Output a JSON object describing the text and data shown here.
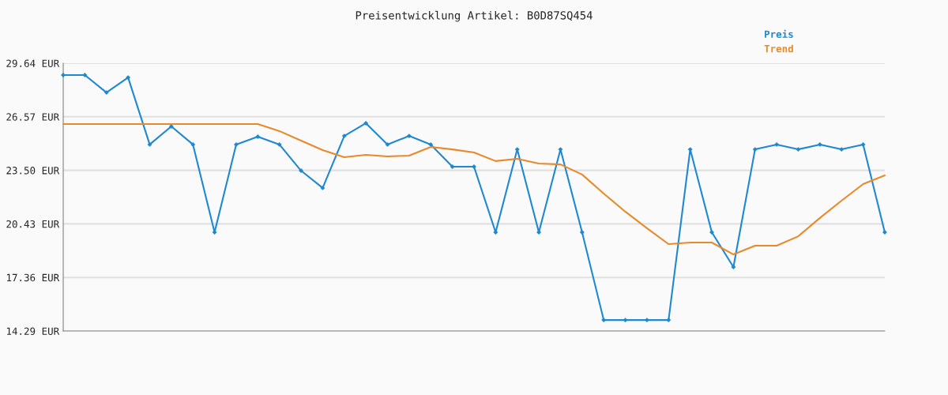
{
  "chart_data": {
    "type": "line",
    "title": "Preisentwicklung Artikel: B0D87SQ454",
    "categories": [
      null,
      null,
      null,
      null,
      null,
      null,
      null,
      null,
      null,
      null,
      null,
      null,
      null,
      null,
      null,
      null,
      null,
      null,
      null,
      null,
      null,
      null,
      null,
      null,
      null,
      null,
      null,
      null,
      null,
      null,
      null,
      null,
      null,
      null,
      null,
      null,
      null,
      null,
      null
    ],
    "series": [
      {
        "name": "Preis",
        "color": "#1e88d0",
        "marker": "diamond",
        "values": [
          28.96,
          28.96,
          27.96,
          28.82,
          24.98,
          26.02,
          24.98,
          19.95,
          24.98,
          25.43,
          24.98,
          23.48,
          22.49,
          25.47,
          26.2,
          24.98,
          25.47,
          24.98,
          23.71,
          23.71,
          19.95,
          24.7,
          19.95,
          24.7,
          19.95,
          14.92,
          14.92,
          14.92,
          14.92,
          24.7,
          19.95,
          17.96,
          24.7,
          24.98,
          24.7,
          24.98,
          24.7,
          24.98,
          19.95
        ]
      },
      {
        "name": "Trend",
        "color": "#e8892a",
        "values": [
          26.15,
          26.15,
          26.15,
          26.15,
          26.15,
          26.15,
          26.15,
          26.15,
          26.15,
          26.15,
          25.75,
          25.2,
          24.66,
          24.25,
          24.39,
          24.3,
          24.34,
          24.84,
          24.7,
          24.52,
          24.03,
          24.16,
          23.89,
          23.84,
          23.26,
          22.17,
          21.13,
          20.18,
          19.27,
          19.36,
          19.36,
          18.68,
          19.18,
          19.18,
          19.72,
          20.77,
          21.76,
          22.71,
          23.21
        ]
      }
    ],
    "ylim": [
      14.29,
      29.64
    ],
    "yticks": [
      {
        "value": 14.29,
        "label": "14.29 EUR"
      },
      {
        "value": 17.36,
        "label": "17.36 EUR"
      },
      {
        "value": 20.43,
        "label": "20.43 EUR"
      },
      {
        "value": 23.5,
        "label": "23.50 EUR"
      },
      {
        "value": 26.57,
        "label": "26.57 EUR"
      },
      {
        "value": 29.64,
        "label": "29.64 EUR"
      }
    ],
    "tick_labels": "y",
    "grid": "y",
    "legend": "top right"
  }
}
